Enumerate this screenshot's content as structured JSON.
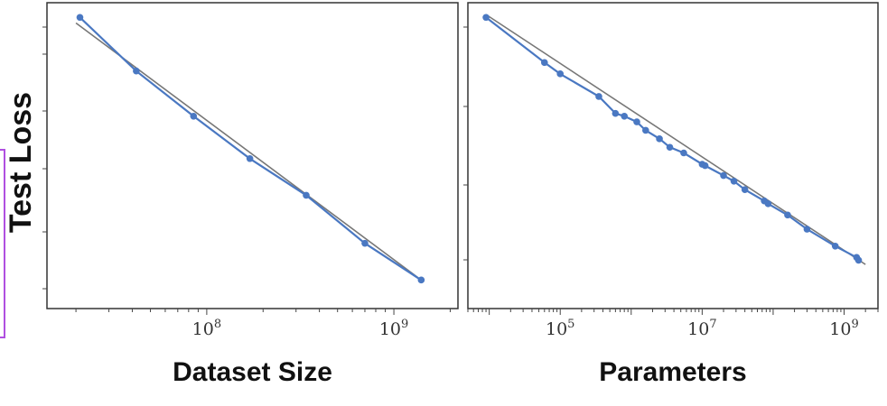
{
  "accent_colors": {
    "data_line": "#4a78c2",
    "fit_line": "#777777",
    "highlight_box": "#b04fe0"
  },
  "ylabel": "Test Loss",
  "chart_data": [
    {
      "type": "line",
      "xlabel": "Dataset Size",
      "ylabel": "Test Loss",
      "x_scale": "log",
      "xlim": [
        14000000,
        2200000000
      ],
      "x_tick_labels": [
        {
          "value": 100000000,
          "label": "10^8"
        },
        {
          "value": 1000000000,
          "label": "10^9"
        }
      ],
      "y_tick_labels": [],
      "series": [
        {
          "points": [
            [
              21000000,
              0.98
            ],
            [
              42000000,
              0.79
            ],
            [
              85000000,
              0.63
            ],
            [
              170000000,
              0.48
            ],
            [
              340000000,
              0.35
            ],
            [
              700000000,
              0.18
            ],
            [
              1400000000,
              0.05
            ]
          ]
        }
      ],
      "trend_line": [
        [
          20000000,
          0.96
        ],
        [
          1400000000,
          0.05
        ]
      ],
      "grid": false,
      "legend": "none"
    },
    {
      "type": "line",
      "xlabel": "Parameters",
      "ylabel": "",
      "x_scale": "log",
      "xlim": [
        5000,
        3000000000
      ],
      "x_tick_labels": [
        {
          "value": 100000,
          "label": "10^5"
        },
        {
          "value": 10000000,
          "label": "10^7"
        },
        {
          "value": 1000000000,
          "label": "10^9"
        }
      ],
      "y_tick_labels": [],
      "series": [
        {
          "points": [
            [
              9000,
              0.98
            ],
            [
              60000,
              0.82
            ],
            [
              100000,
              0.78
            ],
            [
              350000,
              0.7
            ],
            [
              600000,
              0.64
            ],
            [
              800000,
              0.63
            ],
            [
              1200000,
              0.61
            ],
            [
              1600000,
              0.58
            ],
            [
              2500000,
              0.55
            ],
            [
              3500000,
              0.52
            ],
            [
              5500000,
              0.5
            ],
            [
              10000000,
              0.46
            ],
            [
              11000000,
              0.455
            ],
            [
              20000000,
              0.42
            ],
            [
              28000000,
              0.4
            ],
            [
              40000000,
              0.37
            ],
            [
              75000000,
              0.33
            ],
            [
              85000000,
              0.32
            ],
            [
              160000000,
              0.28
            ],
            [
              300000000,
              0.23
            ],
            [
              750000000,
              0.17
            ],
            [
              1500000000,
              0.13
            ],
            [
              1600000000,
              0.12
            ]
          ]
        }
      ],
      "trend_line": [
        [
          9000,
          0.99
        ],
        [
          2000000000,
          0.105
        ]
      ],
      "grid": false,
      "legend": "none"
    }
  ]
}
